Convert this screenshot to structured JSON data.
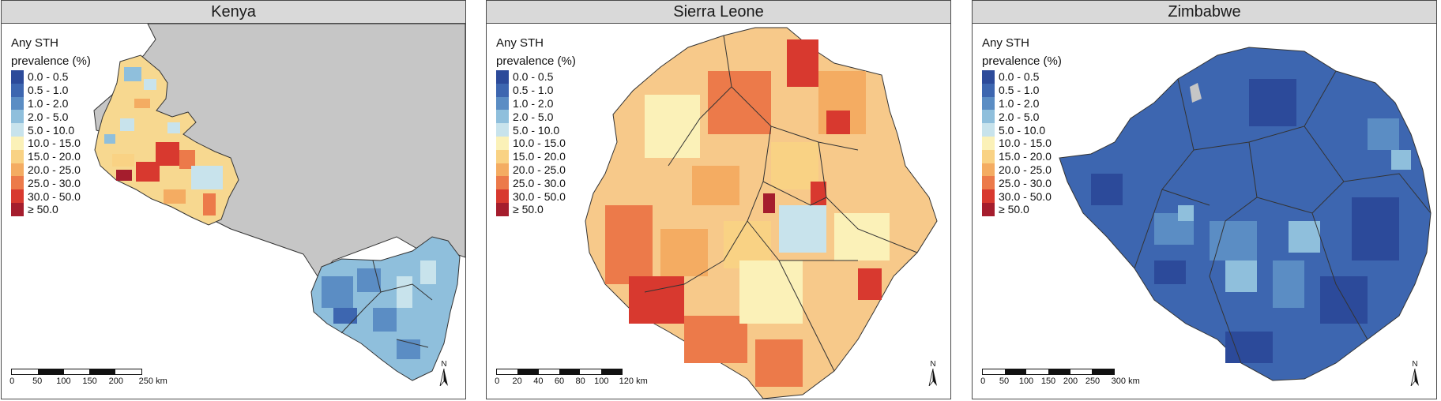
{
  "legend": {
    "title_line1": "Any STH",
    "title_line2": "prevalence (%)",
    "classes": [
      {
        "label": "0.0 - 0.5",
        "color": "#2c4a9a"
      },
      {
        "label": "0.5 - 1.0",
        "color": "#3d66b0"
      },
      {
        "label": "1.0 - 2.0",
        "color": "#5b8dc4"
      },
      {
        "label": "2.0 - 5.0",
        "color": "#8fbfdc"
      },
      {
        "label": "5.0 - 10.0",
        "color": "#c8e3ec"
      },
      {
        "label": "10.0 - 15.0",
        "color": "#fbf1b8"
      },
      {
        "label": "15.0 - 20.0",
        "color": "#f9d284"
      },
      {
        "label": "20.0 - 25.0",
        "color": "#f4ac62"
      },
      {
        "label": "25.0 - 30.0",
        "color": "#ec7a4a"
      },
      {
        "label": "30.0 - 50.0",
        "color": "#d8392f"
      },
      {
        "label": "≥ 50.0",
        "color": "#a51d2d"
      }
    ]
  },
  "north_label": "N",
  "panels": [
    {
      "title": "Kenya",
      "scale_labels": [
        "0",
        "50",
        "100",
        "150",
        "200",
        "250 km"
      ]
    },
    {
      "title": "Sierra Leone",
      "scale_labels": [
        "0",
        "20",
        "40",
        "60",
        "80",
        "100",
        "120 km"
      ]
    },
    {
      "title": "Zimbabwe",
      "scale_labels": [
        "0",
        "50",
        "100",
        "150",
        "200",
        "250",
        "300 km"
      ]
    }
  ],
  "colors": {
    "land_background": "#c6c6c6",
    "border": "#333333",
    "strip": "#d9d9d9"
  }
}
